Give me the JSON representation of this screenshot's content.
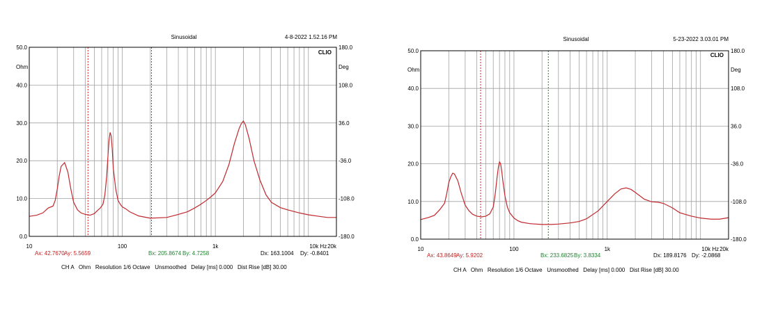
{
  "colors": {
    "curve": "#c0282d",
    "cursor_a": "#d02020",
    "cursor_b": "#208030",
    "grid": "#a0a0a0"
  },
  "chart_data": [
    {
      "type": "line",
      "title": "Sinusoidal",
      "timestamp": "4-8-2022 1.52.16 PM",
      "brand": "CLIO",
      "xscale": "log",
      "xlim": [
        10,
        20000
      ],
      "ylim": [
        0,
        50
      ],
      "y2lim": [
        -180,
        180
      ],
      "ylabel": "Ohm",
      "y2label": "Deg",
      "y_ticks": [
        "0.0",
        "10.0",
        "20.0",
        "30.0",
        "40.0",
        "50.0"
      ],
      "y2_ticks": [
        "-180.0",
        "-108.0",
        "-36.0",
        "36.0",
        "108.0",
        "180.0"
      ],
      "x_ticks": [
        {
          "v": 10,
          "t": "10"
        },
        {
          "v": 100,
          "t": "100"
        },
        {
          "v": 1000,
          "t": "1k"
        },
        {
          "v": 10000,
          "t": "10k Hz"
        },
        {
          "v": 20000,
          "t": "20k"
        }
      ],
      "cursor_a_freq": 42.767,
      "cursor_b_freq": 205.8674,
      "readout": {
        "ax": "Ax: 42.7670",
        "ay": "Ay: 5.5659",
        "bx": "Bx: 205.8674",
        "by": "By: 4.7258",
        "dx": "Dx: 163.1004",
        "dy": "Dy: -0.8401"
      },
      "footer": "CH A   Ohm   Resolution 1/6 Octave   Unsmoothed   Delay [ms] 0.000   Dist Rise [dB] 30.00",
      "series": [
        {
          "x": [
            10,
            12,
            14,
            16,
            18,
            19,
            20,
            21,
            22,
            24,
            26,
            28,
            30,
            33,
            36,
            40,
            45,
            50,
            55,
            58,
            62,
            65,
            68,
            70,
            72,
            74,
            76,
            78,
            80,
            85,
            90,
            95,
            100,
            110,
            120,
            150,
            200,
            300,
            400,
            500,
            600,
            700,
            800,
            900,
            1000,
            1200,
            1400,
            1600,
            1800,
            1900,
            2000,
            2100,
            2300,
            2600,
            3000,
            3500,
            4000,
            5000,
            6000,
            8000,
            10000,
            13000,
            16000,
            20000
          ],
          "y": [
            5.3,
            5.6,
            6.2,
            7.5,
            8.0,
            9.5,
            12.5,
            16.0,
            18.5,
            19.5,
            17.0,
            12.5,
            9.0,
            7.0,
            6.2,
            5.8,
            5.6,
            6.0,
            7.0,
            7.5,
            8.5,
            11.0,
            16.0,
            21.0,
            25.5,
            27.5,
            26.5,
            23.0,
            18.0,
            12.5,
            9.5,
            8.5,
            7.8,
            7.2,
            6.5,
            5.4,
            4.8,
            5.0,
            5.8,
            6.5,
            7.5,
            8.5,
            9.5,
            10.5,
            11.5,
            14.5,
            19.0,
            24.5,
            28.5,
            29.8,
            30.5,
            29.5,
            26.0,
            20.0,
            15.0,
            11.0,
            9.0,
            7.6,
            7.0,
            6.2,
            5.7,
            5.3,
            5.0,
            5.0
          ]
        }
      ]
    },
    {
      "type": "line",
      "title": "Sinusoidal",
      "timestamp": "5-23-2022 3.03.01 PM",
      "brand": "CLIO",
      "xscale": "log",
      "xlim": [
        10,
        20000
      ],
      "ylim": [
        0,
        50
      ],
      "y2lim": [
        -180,
        180
      ],
      "ylabel": "Ohm",
      "y2label": "Deg",
      "y_ticks": [
        "0.0",
        "10.0",
        "20.0",
        "30.0",
        "40.0",
        "50.0"
      ],
      "y2_ticks": [
        "-180.0",
        "-108.0",
        "-36.0",
        "36.0",
        "108.0",
        "180.0"
      ],
      "x_ticks": [
        {
          "v": 10,
          "t": "10"
        },
        {
          "v": 100,
          "t": "100"
        },
        {
          "v": 1000,
          "t": "1k"
        },
        {
          "v": 10000,
          "t": "10k Hz"
        },
        {
          "v": 20000,
          "t": "20k"
        }
      ],
      "cursor_a_freq": 43.8649,
      "cursor_b_freq": 233.6825,
      "readout": {
        "ax": "Ax: 43.8649",
        "ay": "Ay: 5.9202",
        "bx": "Bx: 233.6825",
        "by": "By: 3.8334",
        "dx": "Dx: 189.8176",
        "dy": "Dy: -2.0868"
      },
      "footer": "CH A   Ohm   Resolution 1/6 Octave   Unsmoothed   Delay [ms] 0.000   Dist Rise [dB] 30.00",
      "series": [
        {
          "x": [
            10,
            12,
            14,
            16,
            18,
            19,
            20,
            21,
            22,
            23,
            25,
            27,
            30,
            33,
            36,
            40,
            45,
            50,
            55,
            60,
            63,
            66,
            68,
            70,
            72,
            74,
            76,
            80,
            85,
            90,
            100,
            110,
            120,
            150,
            200,
            250,
            300,
            400,
            500,
            600,
            800,
            1000,
            1200,
            1400,
            1600,
            1800,
            2000,
            2500,
            3000,
            3500,
            4000,
            5000,
            6000,
            8000,
            10000,
            13000,
            16000,
            20000
          ],
          "y": [
            5.2,
            5.7,
            6.3,
            7.8,
            9.5,
            12.0,
            15.0,
            16.5,
            17.5,
            17.3,
            15.5,
            12.5,
            9.0,
            7.5,
            6.6,
            6.1,
            5.9,
            6.1,
            6.7,
            8.5,
            12.0,
            16.5,
            19.0,
            20.5,
            20.0,
            18.0,
            15.5,
            11.5,
            8.5,
            7.0,
            5.6,
            4.9,
            4.5,
            4.1,
            3.9,
            3.9,
            4.0,
            4.3,
            4.7,
            5.4,
            7.5,
            10.0,
            12.0,
            13.3,
            13.6,
            13.2,
            12.4,
            10.6,
            9.9,
            9.8,
            9.5,
            8.3,
            7.0,
            6.1,
            5.6,
            5.3,
            5.3,
            5.7
          ]
        }
      ]
    }
  ]
}
